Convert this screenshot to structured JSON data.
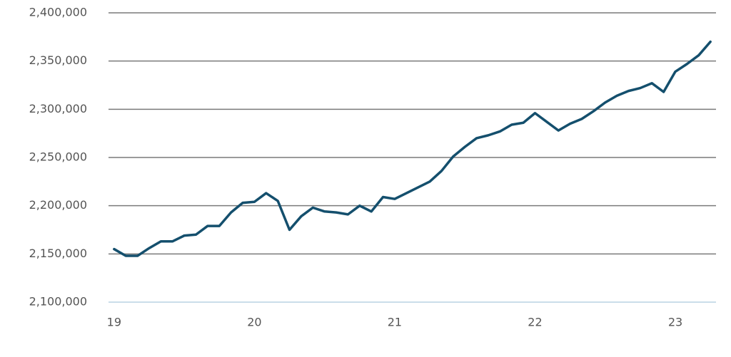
{
  "chart_data": {
    "type": "line",
    "x": [
      19,
      19.0833,
      19.1667,
      19.25,
      19.3333,
      19.4167,
      19.5,
      19.5833,
      19.6667,
      19.75,
      19.8333,
      19.9167,
      20,
      20.0833,
      20.1667,
      20.25,
      20.3333,
      20.4167,
      20.5,
      20.5833,
      20.6667,
      20.75,
      20.8333,
      20.9167,
      21,
      21.0833,
      21.1667,
      21.25,
      21.3333,
      21.4167,
      21.5,
      21.5833,
      21.6667,
      21.75,
      21.8333,
      21.9167,
      22,
      22.0833,
      22.1667,
      22.25,
      22.3333,
      22.4167,
      22.5,
      22.5833,
      22.6667,
      22.75,
      22.8333,
      22.9167,
      23,
      23.0833,
      23.1667,
      23.25
    ],
    "series": [
      {
        "color": "#144f6d",
        "values": [
          2155000,
          2148000,
          2148000,
          2156000,
          2163000,
          2163000,
          2169000,
          2170000,
          2179000,
          2179000,
          2193000,
          2203000,
          2204000,
          2213000,
          2205000,
          2175000,
          2189000,
          2198000,
          2194000,
          2193000,
          2191000,
          2200000,
          2194000,
          2209000,
          2207000,
          2213000,
          2219000,
          2225000,
          2236000,
          2251000,
          2261000,
          2270000,
          2273000,
          2277000,
          2284000,
          2286000,
          2296000,
          2287000,
          2278000,
          2285000,
          2290000,
          2298000,
          2307000,
          2314000,
          2319000,
          2322000,
          2327000,
          2318000,
          2339000,
          2347000,
          2356000,
          2370000
        ]
      }
    ],
    "xlim": [
      18.96,
      23.29
    ],
    "xticks": [
      19,
      20,
      21,
      22,
      23
    ],
    "ylim": [
      2100000,
      2400000
    ],
    "yticks": [
      {
        "value": 2100000,
        "label": "2,100,000"
      },
      {
        "value": 2150000,
        "label": "2,150,000"
      },
      {
        "value": 2200000,
        "label": "2,200,000"
      },
      {
        "value": 2250000,
        "label": "2,250,000"
      },
      {
        "value": 2300000,
        "label": "2,300,000"
      },
      {
        "value": 2350000,
        "label": "2,350,000"
      },
      {
        "value": 2400000,
        "label": "2,400,000"
      }
    ],
    "grid": true
  }
}
